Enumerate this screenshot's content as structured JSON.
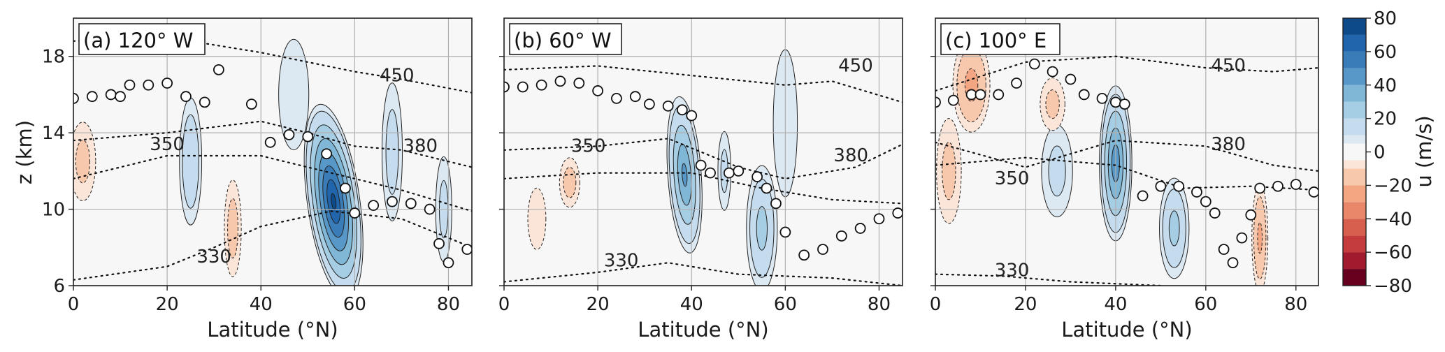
{
  "chart_data": {
    "type": "heatmap",
    "x_ticks": [
      0,
      20,
      40,
      60,
      80
    ],
    "y_ticks": [
      6,
      10,
      14,
      18
    ],
    "xlim": [
      0,
      85
    ],
    "ylim": [
      6,
      20
    ],
    "xlabel": "Latitude (°N)",
    "ylabel": "z (km)",
    "grid": true,
    "colorbar": {
      "label": "u (m/s)",
      "ticks": [
        80,
        60,
        40,
        20,
        0,
        -20,
        -40,
        -60,
        -80
      ],
      "levels": [
        -80,
        -70,
        -60,
        -50,
        -40,
        -30,
        -20,
        -10,
        -5,
        5,
        10,
        20,
        30,
        40,
        50,
        60,
        70,
        80
      ],
      "colors": [
        "#67001f",
        "#a11a2d",
        "#c43c3c",
        "#d6604d",
        "#e8876a",
        "#f4a582",
        "#f8c8ad",
        "#fbe5d8",
        "#f7f7f7",
        "#dde9f2",
        "#c4dcee",
        "#a5cde3",
        "#80b6d6",
        "#5898c8",
        "#3a7cb8",
        "#2166ac",
        "#0d4a8a"
      ]
    },
    "panels": [
      {
        "title": "(a) 120° W",
        "theta_labels": [
          {
            "text": "450",
            "x": 69,
            "y": 16.7
          },
          {
            "text": "350",
            "x": 20,
            "y": 13.1
          },
          {
            "text": "380",
            "x": 74,
            "y": 13.0
          },
          {
            "text": "330",
            "x": 30,
            "y": 7.2
          }
        ],
        "theta_lines": [
          {
            "points": [
              [
                0,
                18.8
              ],
              [
                20,
                19.0
              ],
              [
                40,
                18.2
              ],
              [
                60,
                17.2
              ],
              [
                70,
                16.8
              ],
              [
                85,
                16.1
              ]
            ]
          },
          {
            "points": [
              [
                0,
                13.6
              ],
              [
                20,
                14.0
              ],
              [
                40,
                14.6
              ],
              [
                50,
                14.0
              ],
              [
                60,
                13.3
              ],
              [
                70,
                13.1
              ],
              [
                85,
                12.2
              ]
            ]
          },
          {
            "points": [
              [
                0,
                11.6
              ],
              [
                20,
                12.8
              ],
              [
                40,
                12.8
              ],
              [
                55,
                11.9
              ],
              [
                70,
                11.0
              ],
              [
                85,
                9.9
              ]
            ]
          },
          {
            "points": [
              [
                0,
                6.3
              ],
              [
                20,
                7.0
              ],
              [
                30,
                8.0
              ],
              [
                40,
                9.1
              ],
              [
                55,
                9.9
              ],
              [
                70,
                9.5
              ],
              [
                85,
                8.0
              ]
            ]
          }
        ],
        "tropopause": [
          [
            0,
            15.8
          ],
          [
            4,
            15.9
          ],
          [
            8,
            16.0
          ],
          [
            10,
            15.9
          ],
          [
            12,
            16.5
          ],
          [
            16,
            16.5
          ],
          [
            20,
            16.6
          ],
          [
            24,
            15.9
          ],
          [
            28,
            15.6
          ],
          [
            31,
            17.3
          ],
          [
            38,
            15.5
          ],
          [
            42,
            13.5
          ],
          [
            46,
            13.9
          ],
          [
            50,
            13.8
          ],
          [
            54,
            12.9
          ],
          [
            58,
            11.1
          ],
          [
            60,
            9.8
          ],
          [
            64,
            10.2
          ],
          [
            68,
            10.4
          ],
          [
            72,
            10.3
          ],
          [
            76,
            10.0
          ],
          [
            78,
            8.2
          ],
          [
            80,
            7.2
          ],
          [
            84,
            7.9
          ]
        ],
        "jets": [
          {
            "x": 55.5,
            "y": 10.4,
            "u": 70,
            "w": 6,
            "h": 5.5,
            "lean": -1.0
          },
          {
            "x": 25,
            "y": 12.5,
            "u": 18,
            "w": 3,
            "h": 4.2,
            "lean": 0
          },
          {
            "x": 47,
            "y": 16.0,
            "u": 8,
            "w": 5,
            "h": 4.5,
            "lean": 0
          },
          {
            "x": 68,
            "y": 13.0,
            "u": 12,
            "w": 3,
            "h": 5.0,
            "lean": 0
          },
          {
            "x": 79,
            "y": 10.0,
            "u": 10,
            "w": 2.5,
            "h": 4.0,
            "lean": 0
          },
          {
            "x": 34,
            "y": 9.0,
            "u": -12,
            "w": 2.5,
            "h": 3.5,
            "lean": 0
          },
          {
            "x": 2,
            "y": 12.5,
            "u": -10,
            "w": 4,
            "h": 3.0,
            "lean": 0
          }
        ]
      },
      {
        "title": "(b) 60° W",
        "theta_labels": [
          {
            "text": "450",
            "x": 75,
            "y": 17.2
          },
          {
            "text": "350",
            "x": 18,
            "y": 13.0
          },
          {
            "text": "380",
            "x": 74,
            "y": 12.5
          },
          {
            "text": "330",
            "x": 25,
            "y": 7.0
          }
        ],
        "theta_lines": [
          {
            "points": [
              [
                0,
                17.3
              ],
              [
                20,
                17.5
              ],
              [
                40,
                17.0
              ],
              [
                60,
                16.5
              ],
              [
                70,
                16.7
              ],
              [
                85,
                15.6
              ]
            ]
          },
          {
            "points": [
              [
                0,
                13.1
              ],
              [
                20,
                13.3
              ],
              [
                35,
                13.7
              ],
              [
                50,
                12.2
              ],
              [
                60,
                11.6
              ],
              [
                75,
                12.2
              ],
              [
                85,
                13.4
              ]
            ]
          },
          {
            "points": [
              [
                0,
                11.6
              ],
              [
                20,
                11.9
              ],
              [
                40,
                11.9
              ],
              [
                55,
                11.1
              ],
              [
                70,
                10.5
              ],
              [
                85,
                10.3
              ]
            ]
          },
          {
            "points": [
              [
                0,
                6.2
              ],
              [
                20,
                6.7
              ],
              [
                35,
                7.2
              ],
              [
                50,
                6.6
              ],
              [
                70,
                6.4
              ],
              [
                85,
                6.0
              ]
            ]
          }
        ],
        "tropopause": [
          [
            0,
            16.4
          ],
          [
            4,
            16.4
          ],
          [
            8,
            16.5
          ],
          [
            12,
            16.7
          ],
          [
            16,
            16.6
          ],
          [
            20,
            16.2
          ],
          [
            24,
            15.8
          ],
          [
            28,
            15.9
          ],
          [
            31,
            15.5
          ],
          [
            35,
            15.4
          ],
          [
            38,
            15.2
          ],
          [
            40,
            14.9
          ],
          [
            42,
            12.3
          ],
          [
            44,
            11.9
          ],
          [
            48,
            11.9
          ],
          [
            50,
            12.0
          ],
          [
            54,
            11.7
          ],
          [
            56,
            11.1
          ],
          [
            58,
            10.3
          ],
          [
            60,
            8.8
          ],
          [
            64,
            7.6
          ],
          [
            68,
            7.9
          ],
          [
            72,
            8.6
          ],
          [
            76,
            9.0
          ],
          [
            80,
            9.5
          ],
          [
            84,
            9.8
          ]
        ],
        "jets": [
          {
            "x": 38.5,
            "y": 11.8,
            "u": 40,
            "w": 4,
            "h": 4.6,
            "lean": -0.5
          },
          {
            "x": 55,
            "y": 9.0,
            "u": 22,
            "w": 4,
            "h": 4.0,
            "lean": 0
          },
          {
            "x": 60,
            "y": 14.5,
            "u": 8,
            "w": 4,
            "h": 6.0,
            "lean": 0
          },
          {
            "x": 47,
            "y": 12.0,
            "u": 10,
            "w": 2,
            "h": 3.0,
            "lean": 0
          },
          {
            "x": 7,
            "y": 9.5,
            "u": -8,
            "w": 3,
            "h": 2.5,
            "lean": 0
          },
          {
            "x": 14,
            "y": 11.4,
            "u": -12,
            "w": 3,
            "h": 1.8,
            "lean": 0
          }
        ]
      },
      {
        "title": "(c) 100° E",
        "theta_labels": [
          {
            "text": "450",
            "x": 65,
            "y": 17.2
          },
          {
            "text": "350",
            "x": 17,
            "y": 11.3
          },
          {
            "text": "380",
            "x": 65,
            "y": 13.1
          },
          {
            "text": "330",
            "x": 17,
            "y": 6.5
          }
        ],
        "theta_lines": [
          {
            "points": [
              [
                0,
                16.2
              ],
              [
                20,
                17.7
              ],
              [
                40,
                18.0
              ],
              [
                60,
                17.4
              ],
              [
                75,
                17.2
              ],
              [
                85,
                17.4
              ]
            ]
          },
          {
            "points": [
              [
                0,
                13.5
              ],
              [
                20,
                12.2
              ],
              [
                40,
                13.6
              ],
              [
                60,
                13.3
              ],
              [
                75,
                12.3
              ],
              [
                85,
                12.0
              ]
            ]
          },
          {
            "points": [
              [
                0,
                12.3
              ],
              [
                20,
                12.7
              ],
              [
                40,
                12.3
              ],
              [
                55,
                11.1
              ],
              [
                70,
                11.2
              ],
              [
                85,
                11.0
              ]
            ]
          },
          {
            "points": [
              [
                0,
                6.6
              ],
              [
                15,
                6.5
              ],
              [
                30,
                6.2
              ],
              [
                50,
                6.0
              ]
            ]
          }
        ],
        "tropopause": [
          [
            0,
            15.6
          ],
          [
            4,
            15.7
          ],
          [
            8,
            16.0
          ],
          [
            10,
            16.0
          ],
          [
            14,
            16.0
          ],
          [
            18,
            16.6
          ],
          [
            22,
            17.6
          ],
          [
            26,
            17.2
          ],
          [
            30,
            16.8
          ],
          [
            33,
            16.0
          ],
          [
            37,
            15.8
          ],
          [
            40,
            15.6
          ],
          [
            42,
            15.5
          ],
          [
            46,
            10.7
          ],
          [
            50,
            11.2
          ],
          [
            54,
            11.2
          ],
          [
            58,
            10.9
          ],
          [
            60,
            10.4
          ],
          [
            62,
            9.8
          ],
          [
            64,
            7.9
          ],
          [
            66,
            7.2
          ],
          [
            68,
            8.5
          ],
          [
            70,
            9.7
          ],
          [
            72,
            11.1
          ],
          [
            76,
            11.2
          ],
          [
            80,
            11.3
          ],
          [
            84,
            10.9
          ]
        ],
        "jets": [
          {
            "x": 40,
            "y": 12.4,
            "u": 45,
            "w": 4,
            "h": 4.5,
            "lean": 0
          },
          {
            "x": 53,
            "y": 9.0,
            "u": 22,
            "w": 4,
            "h": 3.2,
            "lean": 0
          },
          {
            "x": 27,
            "y": 12.0,
            "u": 10,
            "w": 5,
            "h": 3.5,
            "lean": 0
          },
          {
            "x": 72,
            "y": 8.5,
            "u": -20,
            "w": 2.2,
            "h": 3.5,
            "lean": 0
          },
          {
            "x": 8,
            "y": 16.5,
            "u": -22,
            "w": 5,
            "h": 3.0,
            "lean": 0
          },
          {
            "x": 3,
            "y": 12.0,
            "u": -10,
            "w": 4,
            "h": 4.0,
            "lean": 0
          },
          {
            "x": 26,
            "y": 15.5,
            "u": -10,
            "w": 4,
            "h": 2.0,
            "lean": 0
          }
        ]
      }
    ]
  }
}
